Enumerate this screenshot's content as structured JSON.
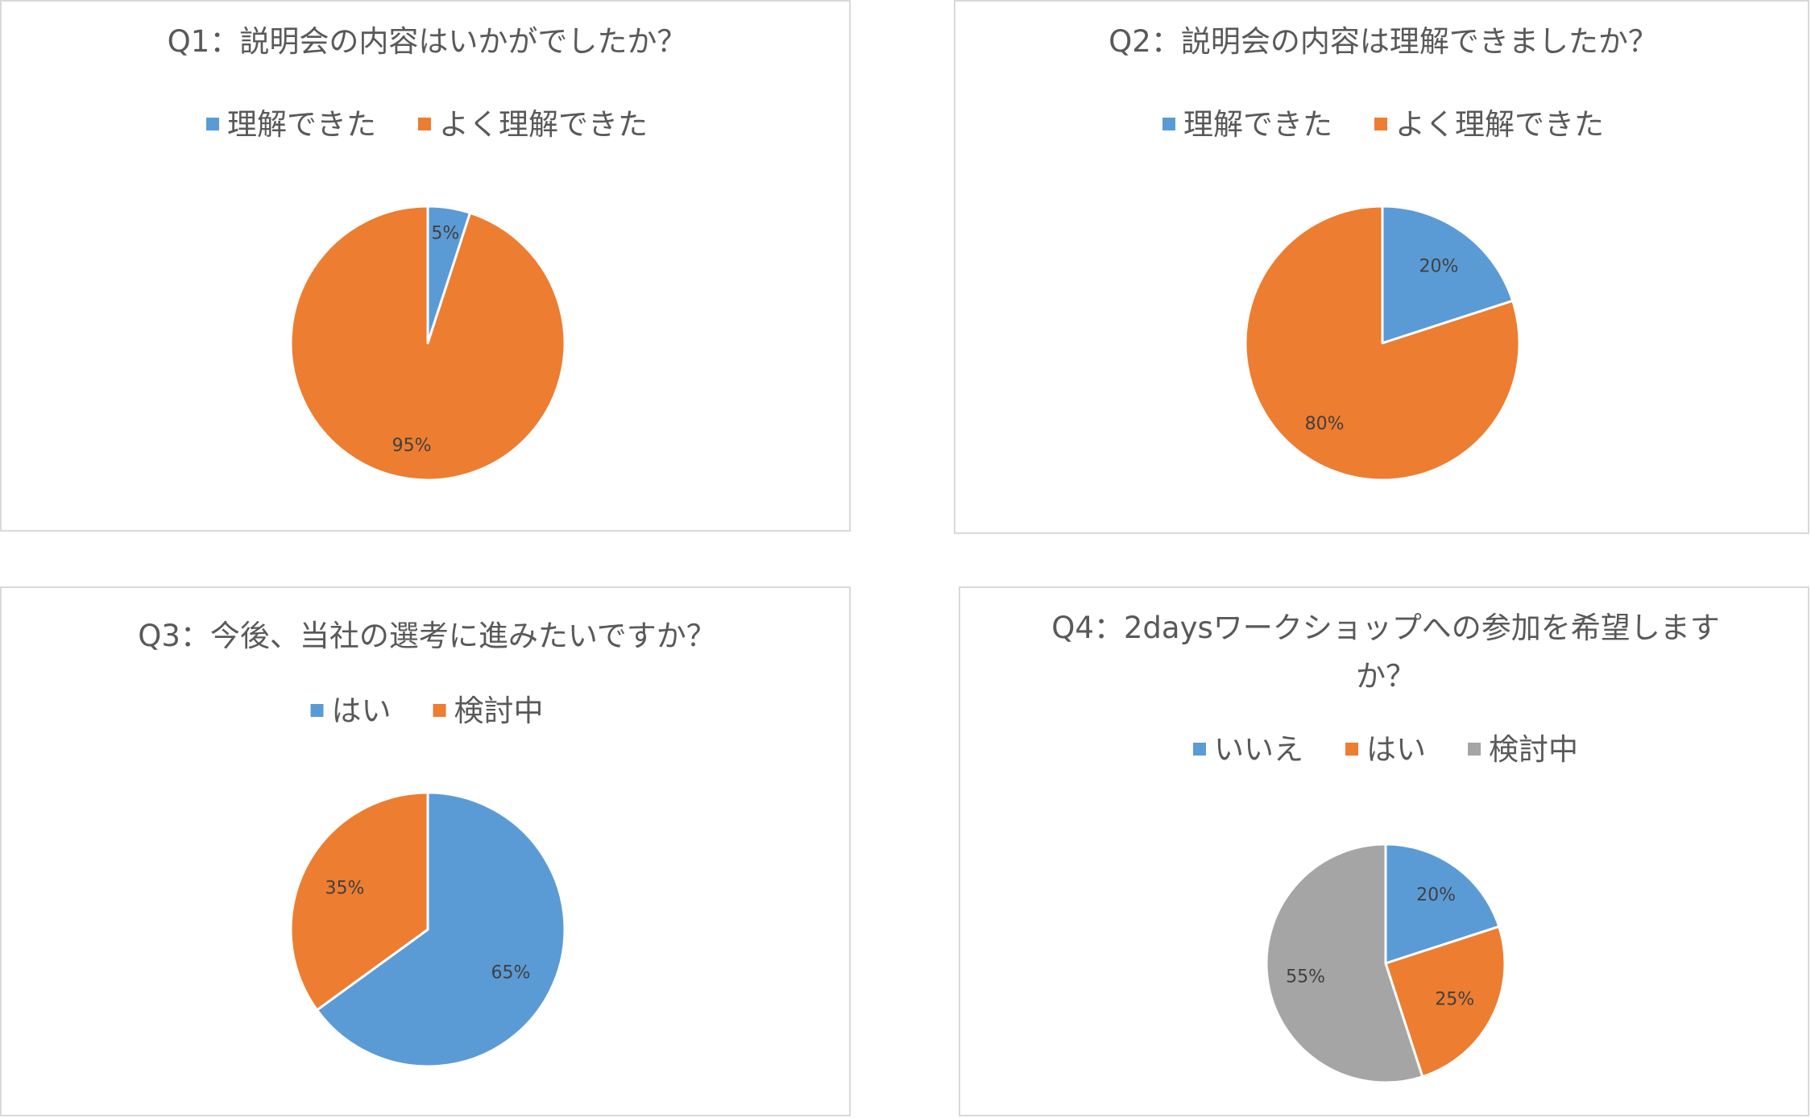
{
  "chart_data": [
    {
      "type": "pie",
      "title": "Q1：説明会の内容はいかがでしたか？",
      "legend_position": "top",
      "categories": [
        "理解できた",
        "よく理解できた"
      ],
      "values": [
        5,
        95
      ],
      "data_labels": [
        "5%",
        "95%"
      ],
      "colors": [
        "#5b9bd5",
        "#ed7d31"
      ]
    },
    {
      "type": "pie",
      "title": "Q2：説明会の内容は理解できましたか？",
      "legend_position": "top",
      "categories": [
        "理解できた",
        "よく理解できた"
      ],
      "values": [
        20,
        80
      ],
      "data_labels": [
        "20%",
        "80%"
      ],
      "colors": [
        "#5b9bd5",
        "#ed7d31"
      ]
    },
    {
      "type": "pie",
      "title": "Q3：今後、当社の選考に進みたいですか？",
      "legend_position": "top",
      "categories": [
        "はい",
        "検討中"
      ],
      "values": [
        65,
        35
      ],
      "data_labels": [
        "65%",
        "35%"
      ],
      "colors": [
        "#5b9bd5",
        "#ed7d31"
      ]
    },
    {
      "type": "pie",
      "title": [
        "Q4：2daysワークショップへの参加を希望します",
        "か？"
      ],
      "legend_position": "top",
      "categories": [
        "いいえ",
        "はい",
        "検討中"
      ],
      "values": [
        20,
        25,
        55
      ],
      "data_labels": [
        "20%",
        "25%",
        "55%"
      ],
      "colors": [
        "#5b9bd5",
        "#ed7d31",
        "#a5a5a5"
      ]
    }
  ]
}
